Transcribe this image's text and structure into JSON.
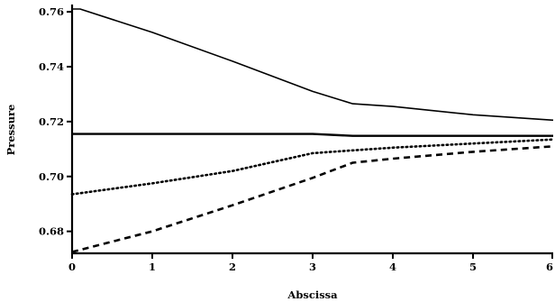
{
  "chart_data": {
    "type": "line",
    "title": "",
    "xlabel": "Abscissa",
    "ylabel": "Pressure",
    "xlim": [
      0,
      6
    ],
    "ylim": [
      0.672,
      0.762
    ],
    "xticks": [
      0,
      1,
      2,
      3,
      4,
      5,
      6
    ],
    "xtick_labels": [
      "0",
      "1",
      "2",
      "3",
      "4",
      "5",
      "6"
    ],
    "yticks": [
      0.68,
      0.7,
      0.72,
      0.74,
      0.76
    ],
    "ytick_labels": [
      "0.68",
      "0.70",
      "0.72",
      "0.74",
      "0.76"
    ],
    "grid": false,
    "legend": "none",
    "series": [
      {
        "style": "solid",
        "x": [
          0,
          0.1,
          1,
          2,
          3,
          3.5,
          4,
          5,
          6
        ],
        "y": [
          0.761,
          0.761,
          0.7525,
          0.742,
          0.731,
          0.7265,
          0.7255,
          0.7225,
          0.7205
        ]
      },
      {
        "style": "solid-thick",
        "x": [
          0,
          1,
          2,
          3,
          3.5,
          4,
          5,
          6
        ],
        "y": [
          0.7155,
          0.7155,
          0.7155,
          0.7155,
          0.7148,
          0.7148,
          0.7148,
          0.7148
        ]
      },
      {
        "style": "dotted",
        "x": [
          0,
          1,
          2,
          3,
          3.5,
          4,
          5,
          6
        ],
        "y": [
          0.6935,
          0.6975,
          0.702,
          0.7085,
          0.7095,
          0.7105,
          0.712,
          0.7135
        ]
      },
      {
        "style": "dashed",
        "x": [
          0,
          1,
          2,
          3,
          3.5,
          4,
          5,
          6
        ],
        "y": [
          0.6725,
          0.68,
          0.6895,
          0.6995,
          0.705,
          0.7065,
          0.709,
          0.711
        ]
      }
    ]
  }
}
